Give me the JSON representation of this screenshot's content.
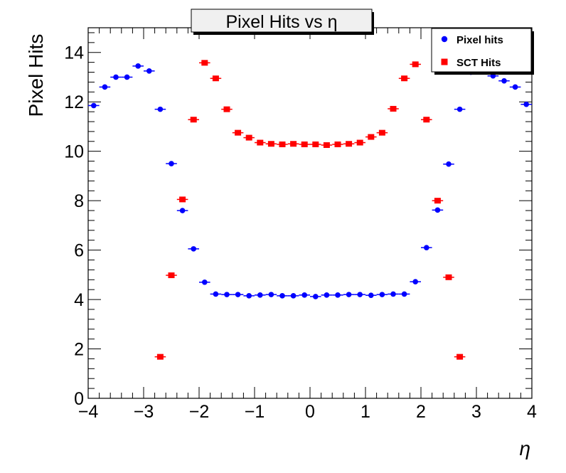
{
  "chart_data": {
    "type": "scatter",
    "title": "Pixel Hits vs η",
    "xlabel": "η",
    "ylabel": "Pixel Hits",
    "xlim": [
      -4,
      4
    ],
    "ylim": [
      0,
      15
    ],
    "xticks": [
      -4,
      -3,
      -2,
      -1,
      0,
      1,
      2,
      3,
      4
    ],
    "yticks": [
      0,
      2,
      4,
      6,
      8,
      10,
      12,
      14
    ],
    "legend_position": "top-right",
    "series": [
      {
        "name": "Pixel hits",
        "marker": "circle",
        "color": "#0000ff",
        "x": [
          -3.9,
          -3.7,
          -3.5,
          -3.3,
          -3.1,
          -2.9,
          -2.7,
          -2.5,
          -2.3,
          -2.1,
          -1.9,
          -1.7,
          -1.5,
          -1.3,
          -1.1,
          -0.9,
          -0.7,
          -0.5,
          -0.3,
          -0.1,
          0.1,
          0.3,
          0.5,
          0.7,
          0.9,
          1.1,
          1.3,
          1.5,
          1.7,
          1.9,
          2.1,
          2.3,
          2.5,
          2.7,
          2.9,
          3.1,
          3.3,
          3.5,
          3.7,
          3.9
        ],
        "y": [
          11.85,
          12.6,
          13.0,
          13.0,
          13.45,
          13.25,
          11.7,
          9.5,
          7.6,
          6.05,
          4.7,
          4.22,
          4.2,
          4.2,
          4.15,
          4.18,
          4.2,
          4.15,
          4.15,
          4.18,
          4.12,
          4.18,
          4.18,
          4.2,
          4.2,
          4.17,
          4.2,
          4.22,
          4.22,
          4.72,
          6.1,
          7.62,
          9.48,
          11.7,
          13.2,
          13.4,
          13.05,
          12.85,
          12.6,
          11.9
        ]
      },
      {
        "name": "SCT Hits",
        "marker": "square",
        "color": "#ff0000",
        "x": [
          -2.7,
          -2.5,
          -2.3,
          -2.1,
          -1.9,
          -1.7,
          -1.5,
          -1.3,
          -1.1,
          -0.9,
          -0.7,
          -0.5,
          -0.3,
          -0.1,
          0.1,
          0.3,
          0.5,
          0.7,
          0.9,
          1.1,
          1.3,
          1.5,
          1.7,
          1.9,
          2.1,
          2.3,
          2.5,
          2.7
        ],
        "y": [
          1.68,
          4.98,
          8.05,
          11.28,
          13.58,
          12.95,
          11.7,
          10.75,
          10.55,
          10.35,
          10.3,
          10.28,
          10.3,
          10.28,
          10.28,
          10.25,
          10.28,
          10.3,
          10.35,
          10.58,
          10.75,
          11.72,
          12.95,
          13.52,
          11.28,
          8.0,
          4.9,
          1.68
        ]
      }
    ]
  }
}
